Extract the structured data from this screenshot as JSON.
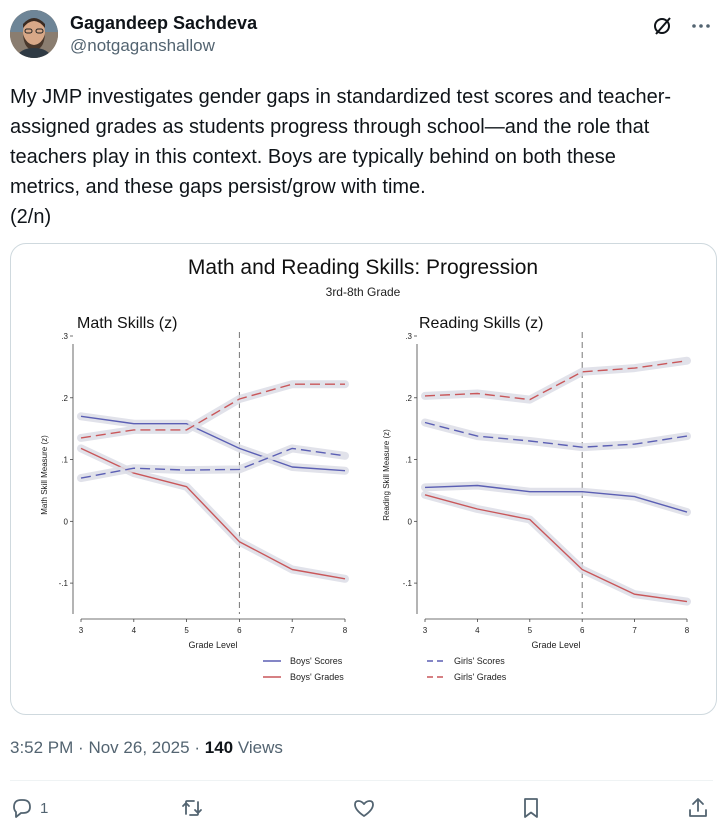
{
  "author": {
    "display_name": "Gagandeep Sachdeva",
    "handle": "@notgaganshallow"
  },
  "tweet": {
    "text": "My JMP investigates gender gaps in standardized test scores and teacher-\nassigned grades as students progress through school—and the role that\nteachers play in this context. Boys are typically behind on both these\nmetrics, and these gaps persist/grow with time.\n(2/n)"
  },
  "meta": {
    "time": "3:52 PM",
    "separator": "·",
    "date": "Nov 26, 2025",
    "views_count": "140",
    "views_label": "Views"
  },
  "actions": {
    "reply_count": "1"
  },
  "icons": {
    "grok": "grok-icon",
    "more": "more-icon",
    "reply": "reply-icon",
    "retweet": "retweet-icon",
    "like": "like-icon",
    "bookmark": "bookmark-icon",
    "share": "share-icon"
  },
  "colors": {
    "boys": "#5b5fb4",
    "girls_boys_grades": "#c9575a",
    "band": "#dcdde6"
  },
  "chart_data": {
    "title": "Math and Reading Skills: Progression",
    "subtitle": "3rd-8th Grade",
    "xlabel": "Grade Level",
    "x": [
      3,
      4,
      5,
      6,
      7,
      8
    ],
    "ylim": [
      -0.15,
      0.3
    ],
    "yticks": [
      ".3",
      ".2",
      ".1",
      "0",
      "-.1"
    ],
    "ytick_values": [
      0.3,
      0.2,
      0.1,
      0,
      -0.1
    ],
    "vline_x": 6,
    "legend": [
      "Boys' Scores",
      "Boys' Grades",
      "Girls' Scores",
      "Girls' Grades"
    ],
    "panels": [
      {
        "name": "math",
        "title": "Math Skills (z)",
        "ylabel": "Math Skill Measure (z)",
        "series": [
          {
            "name": "Boys' Scores",
            "values": [
              0.17,
              0.158,
              0.158,
              0.118,
              0.088,
              0.082
            ]
          },
          {
            "name": "Boys' Grades",
            "values": [
              0.118,
              0.078,
              0.056,
              -0.033,
              -0.078,
              -0.093
            ]
          },
          {
            "name": "Girls' Scores",
            "values": [
              0.07,
              0.086,
              0.083,
              0.084,
              0.118,
              0.106
            ]
          },
          {
            "name": "Girls' Grades",
            "values": [
              0.135,
              0.148,
              0.148,
              0.198,
              0.222,
              0.222
            ]
          }
        ]
      },
      {
        "name": "reading",
        "title": "Reading Skills (z)",
        "ylabel": "Reading Skill Measure (z)",
        "series": [
          {
            "name": "Boys' Scores",
            "values": [
              0.055,
              0.058,
              0.048,
              0.048,
              0.04,
              0.015
            ]
          },
          {
            "name": "Boys' Grades",
            "values": [
              0.043,
              0.02,
              0.003,
              -0.078,
              -0.118,
              -0.13
            ]
          },
          {
            "name": "Girls' Scores",
            "values": [
              0.16,
              0.138,
              0.13,
              0.12,
              0.125,
              0.138
            ]
          },
          {
            "name": "Girls' Grades",
            "values": [
              0.203,
              0.207,
              0.197,
              0.242,
              0.248,
              0.26
            ]
          }
        ]
      }
    ]
  }
}
